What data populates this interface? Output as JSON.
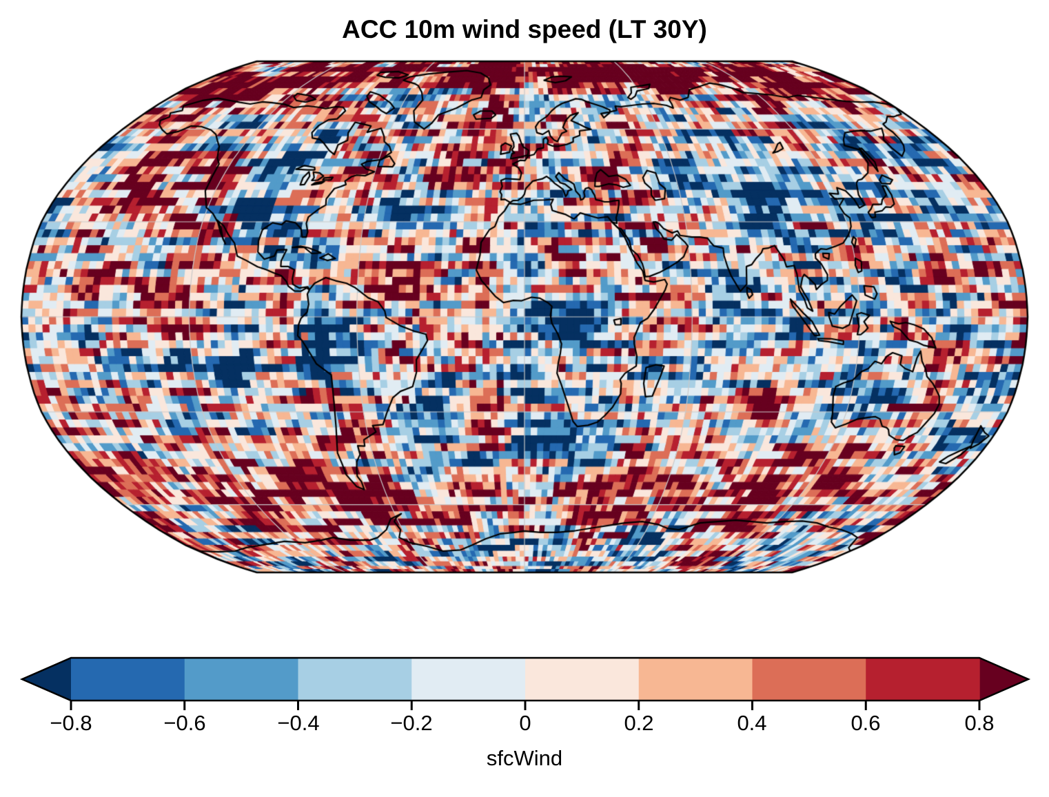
{
  "title": "ACC 10m wind speed (LT 30Y)",
  "colorbar": {
    "label": "sfcWind",
    "tick_labels": [
      "−0.8",
      "−0.6",
      "−0.4",
      "−0.2",
      "0",
      "0.2",
      "0.4",
      "0.6",
      "0.8"
    ]
  },
  "map": {
    "projection": "Robinson",
    "coastline_color": "#000000",
    "gridline_color": "#c9c9c9",
    "border_color": "#000000",
    "background": "#ffffff"
  },
  "chart_data": {
    "type": "heatmap",
    "title": "ACC 10m wind speed (LT 30Y)",
    "metric": "ACC",
    "variable": "10m wind speed",
    "variable_id": "sfcWind",
    "lead_time": "LT 30Y",
    "projection": "Robinson",
    "extent": "global",
    "grid_resolution_deg": 2.5,
    "colorbar": {
      "label": "sfcWind",
      "orientation": "horizontal",
      "levels": [
        -0.8,
        -0.6,
        -0.4,
        -0.2,
        0,
        0.2,
        0.4,
        0.6,
        0.8
      ],
      "tick_labels": [
        "−0.8",
        "−0.6",
        "−0.4",
        "−0.2",
        "0",
        "0.2",
        "0.4",
        "0.6",
        "0.8"
      ],
      "extend": "both",
      "colors": [
        "#2569b0",
        "#539bc9",
        "#a7cfe4",
        "#e1ecf3",
        "#fae7dc",
        "#f7b793",
        "#dc6e57",
        "#b6202f"
      ],
      "under_color": "#053061",
      "over_color": "#67001f",
      "outline_color": "#000000"
    },
    "gridlines": {
      "meridian_spacing_deg": 60,
      "parallel_spacing_deg": 30
    },
    "data_note": "per-cell values not legible in source image; field is a diverging red-blue anomaly-correlation pattern centered at 0 with values beyond ±0.8 shown by the darkest extension colors"
  }
}
